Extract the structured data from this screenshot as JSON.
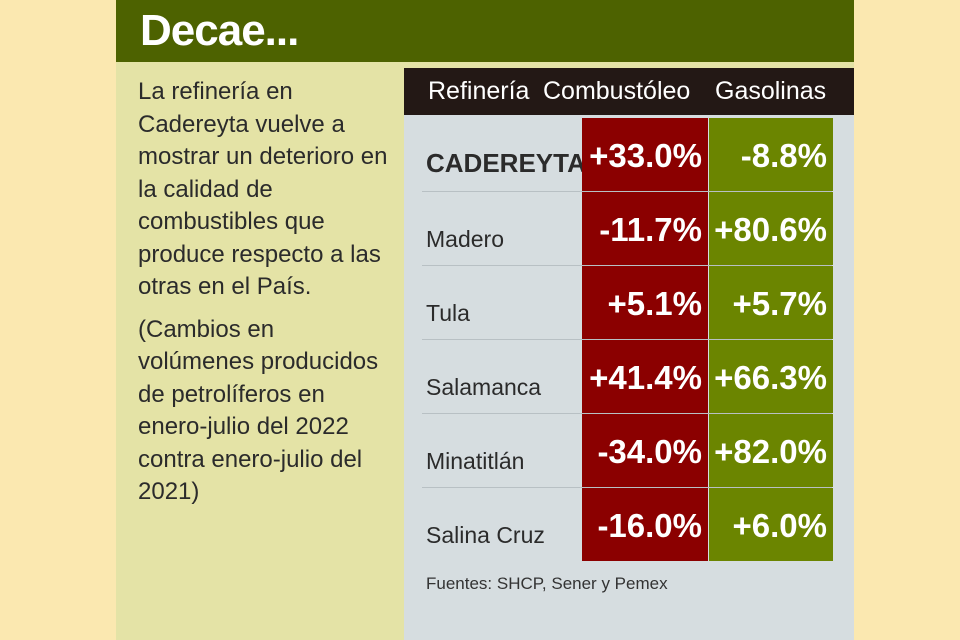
{
  "title": "Decae...",
  "description": {
    "p1": "La refinería en Cadereyta vuelve a mostrar un deterioro en la calidad de combustibles que produce respecto a las otras en el País.",
    "p2": "(Cambios en volúmenes producidos de petrolíferos en enero-julio del 2022 contra enero-julio del 2021)"
  },
  "colors": {
    "header": "#4d6200",
    "combustoleo": "#8b0000",
    "gasolinas": "#6b8500",
    "table_header": "#231815"
  },
  "chart_data": {
    "type": "table",
    "columns": [
      "Refinería",
      "Combustóleo",
      "Gasolinas"
    ],
    "rows": [
      {
        "refineria": "CADEREYTA",
        "combustoleo": "+33.0%",
        "gasolinas": "-8.8%"
      },
      {
        "refineria": "Madero",
        "combustoleo": "-11.7%",
        "gasolinas": "+80.6%"
      },
      {
        "refineria": "Tula",
        "combustoleo": "+5.1%",
        "gasolinas": "+5.7%"
      },
      {
        "refineria": "Salamanca",
        "combustoleo": "+41.4%",
        "gasolinas": "+66.3%"
      },
      {
        "refineria": "Minatitlán",
        "combustoleo": "-34.0%",
        "gasolinas": "+82.0%"
      },
      {
        "refineria": "Salina Cruz",
        "combustoleo": "-16.0%",
        "gasolinas": "+6.0%"
      }
    ],
    "source": "Fuentes: SHCP, Sener y Pemex"
  }
}
